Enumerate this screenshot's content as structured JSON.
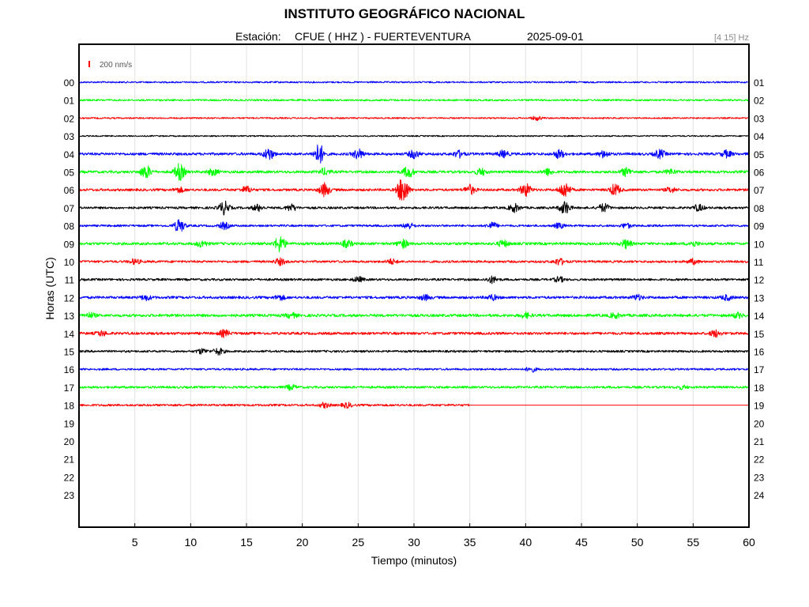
{
  "chart_data": {
    "type": "line",
    "title": "INSTITUTO GEOGRÁFICO NACIONAL",
    "station_label": "Estación:",
    "station": "CFUE ( HHZ ) - FUERTEVENTURA",
    "date": "2025-09-01",
    "band": "[4 15] Hz",
    "scale_label": "200 nm/s",
    "xlabel": "Tiempo (minutos)",
    "ylabel": "Horas (UTC)",
    "xlim": [
      0,
      60
    ],
    "x_ticks": [
      "5",
      "10",
      "15",
      "20",
      "25",
      "30",
      "35",
      "40",
      "45",
      "50",
      "55",
      "60"
    ],
    "left_ticks": [
      "00",
      "01",
      "02",
      "03",
      "04",
      "05",
      "06",
      "07",
      "08",
      "09",
      "10",
      "11",
      "12",
      "13",
      "14",
      "15",
      "16",
      "17",
      "18",
      "19",
      "20",
      "21",
      "22",
      "23"
    ],
    "right_ticks": [
      "01",
      "02",
      "03",
      "04",
      "05",
      "06",
      "07",
      "08",
      "09",
      "10",
      "11",
      "12",
      "13",
      "14",
      "15",
      "16",
      "17",
      "18",
      "19",
      "20",
      "21",
      "22",
      "23",
      "24"
    ],
    "grid": true,
    "colors": [
      "#0000ff",
      "#00ff00",
      "#ff0000",
      "#000000"
    ],
    "series": [
      {
        "hour": "00",
        "color": "#0000ff",
        "amplitude": 1.0,
        "end_minute": 60,
        "events": []
      },
      {
        "hour": "01",
        "color": "#00ff00",
        "amplitude": 1.1,
        "end_minute": 60,
        "events": []
      },
      {
        "hour": "02",
        "color": "#ff0000",
        "amplitude": 0.9,
        "end_minute": 60,
        "events": [
          {
            "t": 41,
            "a": 2.5
          }
        ]
      },
      {
        "hour": "03",
        "color": "#000000",
        "amplitude": 0.8,
        "end_minute": 60,
        "events": []
      },
      {
        "hour": "04",
        "color": "#0000ff",
        "amplitude": 1.6,
        "end_minute": 60,
        "events": [
          {
            "t": 17,
            "a": 7
          },
          {
            "t": 21.5,
            "a": 12
          },
          {
            "t": 25,
            "a": 6
          },
          {
            "t": 30,
            "a": 5
          },
          {
            "t": 34,
            "a": 4
          },
          {
            "t": 38,
            "a": 4
          },
          {
            "t": 43,
            "a": 5
          },
          {
            "t": 47,
            "a": 4
          },
          {
            "t": 52,
            "a": 5
          },
          {
            "t": 58,
            "a": 4
          }
        ]
      },
      {
        "hour": "05",
        "color": "#00ff00",
        "amplitude": 1.6,
        "end_minute": 60,
        "events": [
          {
            "t": 6,
            "a": 8
          },
          {
            "t": 9,
            "a": 10
          },
          {
            "t": 12,
            "a": 4
          },
          {
            "t": 22,
            "a": 4
          },
          {
            "t": 29.5,
            "a": 7
          },
          {
            "t": 36,
            "a": 4
          },
          {
            "t": 42,
            "a": 4
          },
          {
            "t": 49,
            "a": 5
          },
          {
            "t": 53,
            "a": 3
          }
        ]
      },
      {
        "hour": "06",
        "color": "#ff0000",
        "amplitude": 1.5,
        "end_minute": 60,
        "events": [
          {
            "t": 9,
            "a": 3
          },
          {
            "t": 15,
            "a": 4
          },
          {
            "t": 22,
            "a": 8
          },
          {
            "t": 29,
            "a": 18
          },
          {
            "t": 35,
            "a": 6
          },
          {
            "t": 40,
            "a": 8
          },
          {
            "t": 43.5,
            "a": 10
          },
          {
            "t": 48,
            "a": 7
          },
          {
            "t": 53,
            "a": 3
          }
        ]
      },
      {
        "hour": "07",
        "color": "#000000",
        "amplitude": 1.4,
        "end_minute": 60,
        "events": [
          {
            "t": 13,
            "a": 8
          },
          {
            "t": 16,
            "a": 4
          },
          {
            "t": 19,
            "a": 4
          },
          {
            "t": 39,
            "a": 5
          },
          {
            "t": 43.5,
            "a": 8
          },
          {
            "t": 47,
            "a": 5
          },
          {
            "t": 55.5,
            "a": 4
          }
        ]
      },
      {
        "hour": "08",
        "color": "#0000ff",
        "amplitude": 1.3,
        "end_minute": 60,
        "events": [
          {
            "t": 9,
            "a": 8
          },
          {
            "t": 13,
            "a": 4
          },
          {
            "t": 29.5,
            "a": 4
          },
          {
            "t": 37,
            "a": 4
          },
          {
            "t": 43,
            "a": 3
          },
          {
            "t": 49,
            "a": 3
          }
        ]
      },
      {
        "hour": "09",
        "color": "#00ff00",
        "amplitude": 1.6,
        "end_minute": 60,
        "events": [
          {
            "t": 11,
            "a": 4
          },
          {
            "t": 18,
            "a": 10
          },
          {
            "t": 24,
            "a": 4
          },
          {
            "t": 29,
            "a": 5
          },
          {
            "t": 38,
            "a": 4
          },
          {
            "t": 49,
            "a": 5
          },
          {
            "t": 55,
            "a": 3
          }
        ]
      },
      {
        "hour": "10",
        "color": "#ff0000",
        "amplitude": 1.4,
        "end_minute": 60,
        "events": [
          {
            "t": 5,
            "a": 3
          },
          {
            "t": 18,
            "a": 4
          },
          {
            "t": 28,
            "a": 3
          },
          {
            "t": 43,
            "a": 4
          },
          {
            "t": 55,
            "a": 3
          }
        ]
      },
      {
        "hour": "11",
        "color": "#000000",
        "amplitude": 1.4,
        "end_minute": 60,
        "events": [
          {
            "t": 25,
            "a": 3
          },
          {
            "t": 37,
            "a": 4
          },
          {
            "t": 43,
            "a": 3
          }
        ]
      },
      {
        "hour": "12",
        "color": "#0000ff",
        "amplitude": 1.6,
        "end_minute": 60,
        "events": [
          {
            "t": 6,
            "a": 3
          },
          {
            "t": 18,
            "a": 3
          },
          {
            "t": 31,
            "a": 3
          },
          {
            "t": 37,
            "a": 3
          },
          {
            "t": 50,
            "a": 3
          },
          {
            "t": 58,
            "a": 3
          }
        ]
      },
      {
        "hour": "13",
        "color": "#00ff00",
        "amplitude": 1.7,
        "end_minute": 60,
        "events": [
          {
            "t": 1,
            "a": 3
          },
          {
            "t": 19,
            "a": 3
          },
          {
            "t": 40,
            "a": 3
          },
          {
            "t": 48,
            "a": 3
          },
          {
            "t": 59,
            "a": 3
          }
        ]
      },
      {
        "hour": "14",
        "color": "#ff0000",
        "amplitude": 1.6,
        "end_minute": 60,
        "events": [
          {
            "t": 2,
            "a": 3
          },
          {
            "t": 13,
            "a": 4
          },
          {
            "t": 57,
            "a": 4
          }
        ]
      },
      {
        "hour": "15",
        "color": "#000000",
        "amplitude": 1.3,
        "end_minute": 60,
        "events": [
          {
            "t": 11,
            "a": 3
          },
          {
            "t": 12.5,
            "a": 4
          }
        ]
      },
      {
        "hour": "16",
        "color": "#0000ff",
        "amplitude": 1.2,
        "end_minute": 60,
        "events": [
          {
            "t": 40.5,
            "a": 3
          }
        ]
      },
      {
        "hour": "17",
        "color": "#00ff00",
        "amplitude": 1.4,
        "end_minute": 60,
        "events": [
          {
            "t": 19,
            "a": 3
          },
          {
            "t": 54,
            "a": 2
          }
        ]
      },
      {
        "hour": "18",
        "color": "#ff0000",
        "amplitude": 1.3,
        "end_minute": 35,
        "events": [
          {
            "t": 22,
            "a": 3
          },
          {
            "t": 24,
            "a": 3
          }
        ]
      }
    ]
  }
}
